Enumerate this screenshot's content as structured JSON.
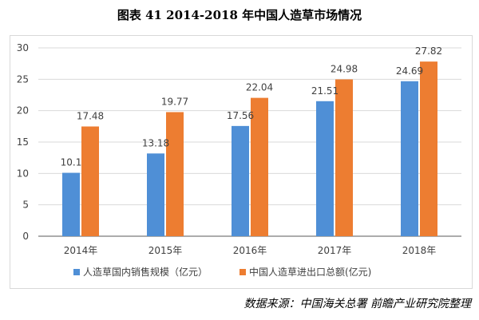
{
  "caption": "图表 41 2014-2018 年中国人造草市场情况",
  "source": "数据来源：中国海关总署 前瞻产业研究院整理",
  "colors": {
    "series1": "#4f8fd6",
    "series2": "#ed7d31",
    "grid": "#d9d9d9",
    "axis": "#595959"
  },
  "chart_data": {
    "type": "bar",
    "categories": [
      "2014年",
      "2015年",
      "2016年",
      "2017年",
      "2018年"
    ],
    "series": [
      {
        "name": "人造草国内销售规模（亿元）",
        "values": [
          10.1,
          13.18,
          17.56,
          21.51,
          24.69
        ],
        "labels": [
          "10.1",
          "13.18",
          "17.56",
          "21.51",
          "24.69"
        ]
      },
      {
        "name": "中国人造草进出口总额(亿元)",
        "values": [
          17.48,
          19.77,
          22.04,
          24.98,
          27.82
        ],
        "labels": [
          "17.48",
          "19.77",
          "22.04",
          "24.98",
          "27.82"
        ]
      }
    ],
    "ylim": [
      0,
      30
    ],
    "yticks": [
      "0",
      "5",
      "10",
      "15",
      "20",
      "25",
      "30"
    ],
    "grid": true,
    "legend": "bottom"
  }
}
